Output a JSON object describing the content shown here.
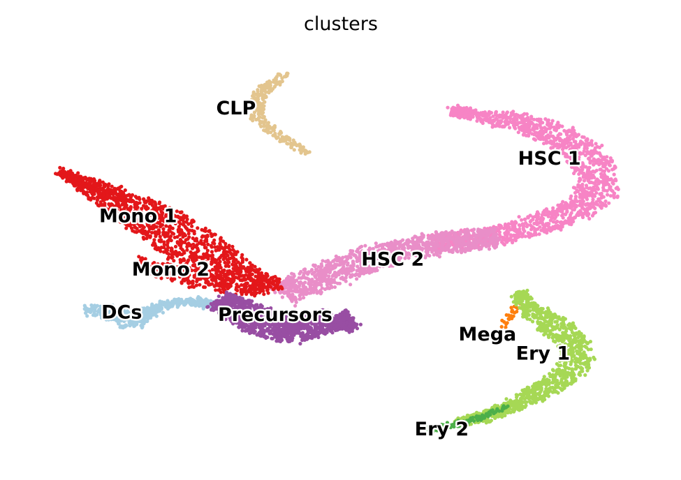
{
  "chart_data": {
    "type": "scatter",
    "title": "clusters",
    "xlabel": "",
    "ylabel": "",
    "axes_visible": false,
    "grid": false,
    "legend": "on data",
    "xlim": [
      0,
      100
    ],
    "ylim": [
      0,
      100
    ],
    "point_shape": "circle",
    "clusters": [
      {
        "name": "CLP",
        "color": "#e3c58e",
        "label_at": [
          34,
          86.2
        ],
        "path": [
          [
            42,
            95
          ],
          [
            39,
            92
          ],
          [
            37.5,
            89
          ],
          [
            37,
            86
          ],
          [
            37.6,
            83
          ],
          [
            39.5,
            80.5
          ],
          [
            42,
            78.5
          ],
          [
            45,
            75.5
          ]
        ],
        "spread": [
          0.6,
          0.9,
          1.0,
          1.1,
          1.0,
          0.9,
          0.7,
          0.5
        ],
        "count": 260,
        "jitter": 0.45
      },
      {
        "name": "HSC 1",
        "color": "#f784c5",
        "label_at": [
          82,
          74
        ],
        "path": [
          [
            66.8,
            86
          ],
          [
            71,
            84.5
          ],
          [
            77,
            83
          ],
          [
            83,
            80
          ],
          [
            87,
            76
          ],
          [
            89.5,
            70.5
          ],
          [
            89,
            65
          ],
          [
            85.5,
            61
          ],
          [
            80,
            58
          ],
          [
            74,
            55.5
          ],
          [
            68,
            54.5
          ],
          [
            64,
            53.5
          ]
        ],
        "spread": [
          0.8,
          1.4,
          2.0,
          2.6,
          3.0,
          3.2,
          3.0,
          2.6,
          2.4,
          2.2,
          2.0,
          2.0
        ],
        "count": 1500,
        "jitter": 0.6
      },
      {
        "name": "HSC 2",
        "color": "#e98ec8",
        "label_at": [
          58,
          49.5
        ],
        "path": [
          [
            74,
            55
          ],
          [
            67,
            54
          ],
          [
            61,
            52.5
          ],
          [
            56,
            50.5
          ],
          [
            52,
            48.5
          ],
          [
            48,
            45.5
          ],
          [
            44.5,
            44
          ],
          [
            41,
            41
          ]
        ],
        "spread": [
          2.2,
          2.4,
          2.4,
          2.8,
          3.0,
          3.0,
          2.8,
          2.6
        ],
        "count": 1150,
        "jitter": 0.6
      },
      {
        "name": "Mono 1",
        "color": "#e3171a",
        "label_at": [
          19,
          60
        ],
        "path": [
          [
            7,
            71
          ],
          [
            12,
            67
          ],
          [
            17,
            63
          ],
          [
            22,
            58.5
          ],
          [
            27,
            53.5
          ],
          [
            31,
            49
          ],
          [
            35,
            45
          ],
          [
            39,
            43
          ]
        ],
        "spread": [
          0.6,
          1.8,
          3.2,
          4.2,
          4.6,
          4.0,
          3.2,
          2.2
        ],
        "count": 1300,
        "jitter": 0.6
      },
      {
        "name": "Mono 2",
        "color": "#e3171a",
        "label_at": [
          24,
          47
        ],
        "path": [
          [
            19,
            49
          ],
          [
            23,
            47
          ],
          [
            28,
            45
          ],
          [
            33,
            43.5
          ],
          [
            37,
            43
          ],
          [
            41,
            44
          ]
        ],
        "spread": [
          1.2,
          1.8,
          2.2,
          2.2,
          1.8,
          1.4
        ],
        "count": 280,
        "jitter": 0.6
      },
      {
        "name": "DCs",
        "color": "#a5cee3",
        "label_at": [
          16.5,
          36.6
        ],
        "path": [
          [
            11,
            37.5
          ],
          [
            14,
            37
          ],
          [
            16.5,
            35.5
          ],
          [
            18,
            34
          ],
          [
            20,
            36.5
          ],
          [
            24,
            39
          ],
          [
            28,
            39.5
          ],
          [
            31,
            38.5
          ]
        ],
        "spread": [
          0.9,
          1.4,
          1.8,
          1.6,
          1.2,
          0.9,
          0.8,
          0.7
        ],
        "count": 520,
        "jitter": 0.5
      },
      {
        "name": "Precursors",
        "color": "#984ea3",
        "label_at": [
          40,
          36
        ],
        "path": [
          [
            31.5,
            40
          ],
          [
            34,
            37.5
          ],
          [
            37,
            35
          ],
          [
            40,
            33.5
          ],
          [
            43,
            32.5
          ],
          [
            46,
            33.5
          ],
          [
            49,
            35.5
          ],
          [
            52,
            33
          ]
        ],
        "spread": [
          2.2,
          2.8,
          3.2,
          3.2,
          3.0,
          2.8,
          2.4,
          1.0
        ],
        "count": 1350,
        "jitter": 0.6
      },
      {
        "name": "Mega",
        "color": "#fe7f0e",
        "label_at": [
          72.5,
          31.3
        ],
        "path": [
          [
            77.5,
            39
          ],
          [
            76.5,
            37.5
          ],
          [
            75.5,
            35.5
          ],
          [
            75,
            33.5
          ]
        ],
        "spread": [
          0.5,
          0.6,
          0.6,
          0.4
        ],
        "count": 26,
        "jitter": 0.4
      },
      {
        "name": "Ery 1",
        "color": "#a6d855",
        "label_at": [
          81,
          26.6
        ],
        "path": [
          [
            77.5,
            42
          ],
          [
            78.5,
            38
          ],
          [
            81,
            35
          ],
          [
            84.5,
            31.5
          ],
          [
            86.5,
            27
          ],
          [
            85,
            22
          ],
          [
            81,
            18
          ],
          [
            77,
            14.5
          ],
          [
            72,
            11.5
          ],
          [
            68,
            10
          ]
        ],
        "spread": [
          0.8,
          1.4,
          2.2,
          2.6,
          2.4,
          2.2,
          1.8,
          1.5,
          1.2,
          0.9
        ],
        "count": 1050,
        "jitter": 0.5
      },
      {
        "name": "Ery 2",
        "color": "#4daf4a",
        "label_at": [
          65.5,
          8.2
        ],
        "path": [
          [
            75.5,
            14
          ],
          [
            72,
            11.5
          ],
          [
            68.5,
            9.8
          ],
          [
            65,
            8.8
          ],
          [
            61.5,
            8
          ]
        ],
        "spread": [
          0.4,
          0.5,
          0.6,
          0.6,
          0.5
        ],
        "count": 140,
        "jitter": 0.35
      }
    ]
  }
}
